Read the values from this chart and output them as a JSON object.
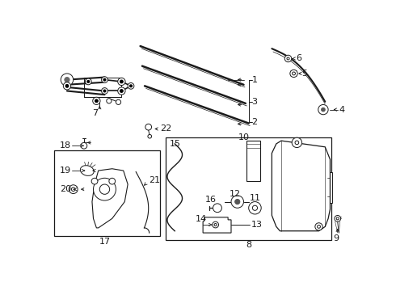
{
  "background_color": "#ffffff",
  "fig_width": 4.9,
  "fig_height": 3.6,
  "dpi": 100,
  "line_color": "#1a1a1a",
  "gray": "#888888"
}
